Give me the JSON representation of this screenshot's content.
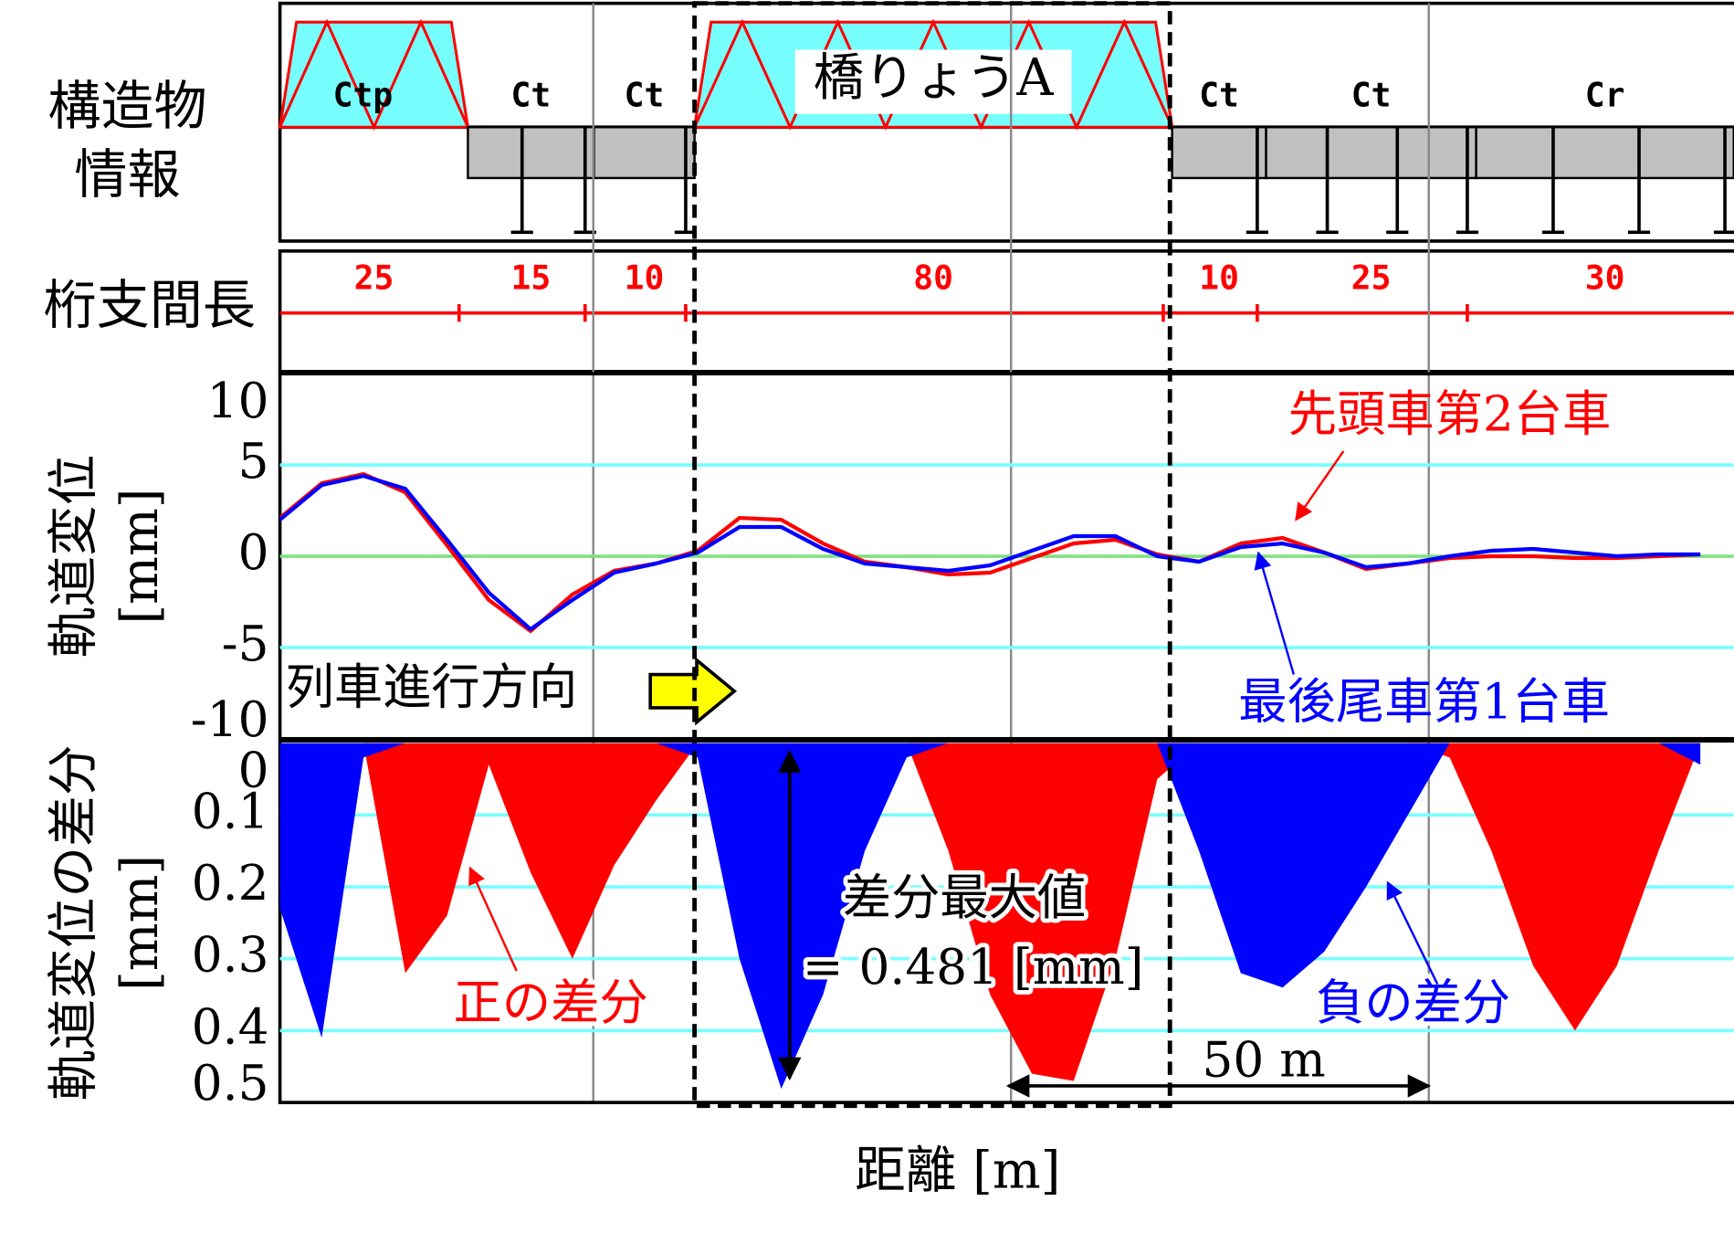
{
  "structure": {
    "label": [
      "構造物",
      "情報"
    ],
    "segments": [
      "Ctp",
      "Ct",
      "Ct",
      "橋りょうA",
      "Ct",
      "Ct",
      "Cr"
    ]
  },
  "spans": {
    "label": "桁支間長",
    "values": [
      25,
      15,
      10,
      80,
      10,
      25,
      30
    ]
  },
  "xlabel": "距離 [m]",
  "xgrid": [
    37.5,
    87.5,
    137.5
  ],
  "chart_data": [
    {
      "type": "line",
      "ylabel": [
        "軌道変位",
        "[mm]"
      ],
      "xlim": [
        0,
        174
      ],
      "ylim": [
        -10,
        10
      ],
      "yticks": [
        10,
        5,
        0,
        -5,
        -10
      ],
      "grid": true,
      "annotation": "列車進行方向",
      "x": [
        0,
        5,
        10,
        15,
        20,
        25,
        30,
        35,
        40,
        45,
        50,
        55,
        60,
        65,
        70,
        75,
        80,
        85,
        90,
        95,
        100,
        105,
        110,
        115,
        120,
        125,
        130,
        135,
        140,
        145,
        150,
        155,
        160,
        165,
        170
      ],
      "series": [
        {
          "name": "先頭車第2台車",
          "color": "#ff0000",
          "values": [
            2.1,
            4.0,
            4.5,
            3.5,
            0.6,
            -2.4,
            -4.1,
            -2.1,
            -0.8,
            -0.4,
            0.3,
            2.1,
            2.0,
            0.7,
            -0.3,
            -0.6,
            -1.0,
            -0.9,
            -0.1,
            0.7,
            0.9,
            0.1,
            -0.3,
            0.7,
            1.0,
            0.2,
            -0.7,
            -0.4,
            -0.1,
            0,
            0,
            -0.1,
            -0.1,
            0,
            0.1
          ]
        },
        {
          "name": "最後尾車第1台車",
          "color": "#0000ff",
          "values": [
            2.0,
            3.9,
            4.4,
            3.7,
            0.9,
            -2.0,
            -4.0,
            -2.4,
            -0.9,
            -0.4,
            0.2,
            1.6,
            1.6,
            0.4,
            -0.4,
            -0.6,
            -0.8,
            -0.5,
            0.3,
            1.1,
            1.1,
            0.0,
            -0.3,
            0.5,
            0.7,
            0.2,
            -0.6,
            -0.4,
            0.0,
            0.3,
            0.4,
            0.2,
            0.0,
            0.1,
            0.1
          ]
        }
      ]
    },
    {
      "type": "area",
      "ylabel": [
        "軌道変位の差分",
        "[mm]"
      ],
      "xlim": [
        0,
        174
      ],
      "ylim": [
        0,
        0.5
      ],
      "inverted": true,
      "yticks": [
        0,
        0.1,
        0.2,
        0.3,
        0.4,
        0.5
      ],
      "grid": true,
      "annotations": [
        "差分最大値",
        "= 0.481 [mm]",
        "50 m"
      ],
      "x": [
        0,
        5,
        10,
        15,
        20,
        25,
        30,
        35,
        40,
        45,
        50,
        55,
        60,
        65,
        70,
        75,
        80,
        85,
        90,
        95,
        100,
        105,
        110,
        115,
        120,
        125,
        130,
        135,
        140,
        145,
        150,
        155,
        160,
        165,
        170
      ],
      "series": [
        {
          "name": "正の差分",
          "color": "#ff0000",
          "values": [
            0,
            0,
            0,
            0.32,
            0.24,
            0.03,
            0.18,
            0.3,
            0.17,
            0.08,
            0,
            0,
            0,
            0,
            0,
            0,
            0.15,
            0.35,
            0.46,
            0.47,
            0.3,
            0.05,
            0,
            0,
            0,
            0,
            0,
            0,
            0.02,
            0.15,
            0.31,
            0.4,
            0.31,
            0.15,
            0
          ]
        },
        {
          "name": "負の差分",
          "color": "#0000ff",
          "values": [
            0.23,
            0.41,
            0.02,
            0,
            0,
            0,
            0,
            0,
            0,
            0,
            0.02,
            0.3,
            0.481,
            0.35,
            0.15,
            0.02,
            0,
            0,
            0,
            0,
            0,
            0,
            0.15,
            0.32,
            0.34,
            0.29,
            0.2,
            0.1,
            0,
            0,
            0,
            0,
            0,
            0,
            0.03
          ]
        }
      ]
    }
  ]
}
